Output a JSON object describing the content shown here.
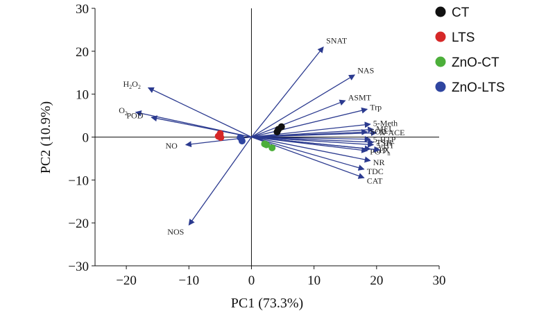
{
  "chart_data": {
    "type": "scatter",
    "subtype": "pca-biplot",
    "title": "",
    "xlabel": "PC1 (73.3%)",
    "ylabel": "PC2 (10.9%)",
    "xlim": [
      -25,
      30
    ],
    "ylim": [
      -30,
      30
    ],
    "xticks": [
      -20,
      -10,
      0,
      10,
      20,
      30
    ],
    "yticks": [
      -30,
      -20,
      -10,
      0,
      10,
      20,
      30
    ],
    "legend_position": "top-right",
    "arrow_color": "#2b3a8f",
    "series": [
      {
        "name": "CT",
        "color": "#111111",
        "points": [
          [
            4.3,
            1.8
          ],
          [
            4.8,
            2.4
          ],
          [
            4.1,
            1.2
          ]
        ]
      },
      {
        "name": "LTS",
        "color": "#d62828",
        "points": [
          [
            -5.0,
            0.8
          ],
          [
            -5.3,
            0.2
          ],
          [
            -4.9,
            -0.1
          ]
        ]
      },
      {
        "name": "ZnO-CT",
        "color": "#4caf3a",
        "points": [
          [
            2.4,
            -1.8
          ],
          [
            2.1,
            -1.6
          ],
          [
            3.3,
            -2.5
          ]
        ]
      },
      {
        "name": "ZnO-LTS",
        "color": "#2f45a0",
        "points": [
          [
            -1.7,
            -0.2
          ],
          [
            -1.5,
            -0.9
          ],
          [
            -1.8,
            -0.1
          ]
        ]
      }
    ],
    "loadings": [
      {
        "label": "SNAT",
        "x": 11.5,
        "y": 21.0
      },
      {
        "label": "NAS",
        "x": 16.5,
        "y": 14.5
      },
      {
        "label": "ASMT",
        "x": 15.0,
        "y": 8.5
      },
      {
        "label": "Trp",
        "x": 18.5,
        "y": 6.5
      },
      {
        "label": "5-Meth",
        "x": 19.0,
        "y": 3.0
      },
      {
        "label": "MEL",
        "x": 19.5,
        "y": 1.8
      },
      {
        "label": "N-ACE",
        "x": 20.0,
        "y": 1.0
      },
      {
        "label": "SOD",
        "x": 18.5,
        "y": 1.2
      },
      {
        "label": "5-HTP",
        "x": 19.0,
        "y": -0.5
      },
      {
        "label": "TSH",
        "x": 19.5,
        "y": -1.2
      },
      {
        "label": "5-HT",
        "x": 19.5,
        "y": -1.8
      },
      {
        "label": "APX",
        "x": 19.0,
        "y": -2.8
      },
      {
        "label": "PO",
        "x": 18.5,
        "y": -3.2
      },
      {
        "label": "Pn",
        "x": 20.5,
        "y": -3.0
      },
      {
        "label": "NR",
        "x": 19.0,
        "y": -5.5
      },
      {
        "label": "TDC",
        "x": 18.0,
        "y": -7.5
      },
      {
        "label": "CAT",
        "x": 18.0,
        "y": -9.5
      },
      {
        "label": "H2O2",
        "x": -16.5,
        "y": 11.5
      },
      {
        "label": "O2",
        "x": -18.5,
        "y": 5.8
      },
      {
        "label": "POD",
        "x": -16.0,
        "y": 4.6
      },
      {
        "label": "NO",
        "x": -10.5,
        "y": -1.8
      },
      {
        "label": "NOS",
        "x": -10.0,
        "y": -20.5
      }
    ]
  }
}
